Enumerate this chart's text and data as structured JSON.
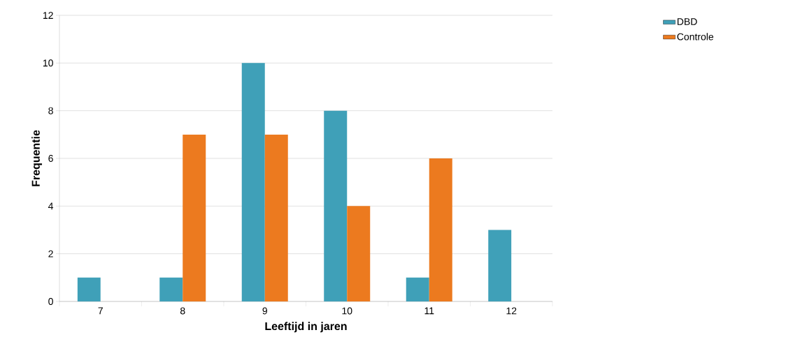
{
  "chart_data": {
    "type": "bar",
    "xlabel": "Leeftijd in jaren",
    "ylabel": "Frequentie",
    "categories": [
      "7",
      "8",
      "9",
      "10",
      "11",
      "12"
    ],
    "series": [
      {
        "name": "DBD",
        "color": "#3fa0b8",
        "values": [
          1,
          1,
          10,
          8,
          1,
          3
        ]
      },
      {
        "name": "Controle",
        "color": "#ec7a1f",
        "values": [
          0,
          7,
          7,
          4,
          6,
          0
        ]
      }
    ],
    "ylim": [
      0,
      12
    ],
    "yticks": [
      0,
      2,
      4,
      6,
      8,
      10,
      12
    ],
    "grid": "y",
    "legend": "top right"
  }
}
